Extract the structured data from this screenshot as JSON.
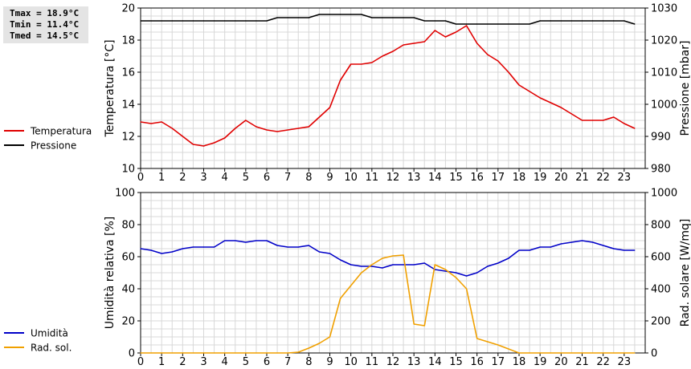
{
  "stats": {
    "tmax": "Tmax = 18.9°C",
    "tmin": "Tmin = 11.4°C",
    "tmed": "Tmed = 14.5°C"
  },
  "colors": {
    "temperature": "#e00000",
    "pressure": "#000000",
    "humidity": "#0000c8",
    "radiation": "#f0a000",
    "grid": "#d8d8d8"
  },
  "chart_data": [
    {
      "type": "line",
      "x_ticks": [
        "0",
        "1",
        "2",
        "3",
        "4",
        "5",
        "6",
        "7",
        "8",
        "9",
        "10",
        "11",
        "12",
        "13",
        "14",
        "15",
        "16",
        "17",
        "18",
        "19",
        "20",
        "21",
        "22",
        "23"
      ],
      "xlim": [
        0,
        24
      ],
      "ylabel": "Temperatura [°C]",
      "ylim": [
        10,
        20
      ],
      "y_ticks": [
        10,
        12,
        14,
        16,
        18,
        20
      ],
      "y2label": "Pressione [mbar]",
      "y2lim": [
        980,
        1030
      ],
      "y2_ticks": [
        980,
        990,
        1000,
        1010,
        1020,
        1030
      ],
      "grid": true,
      "legend_position": "left",
      "series": [
        {
          "name": "Temperatura",
          "axis": "left",
          "color": "#e00000",
          "x": [
            0,
            0.5,
            1,
            1.5,
            2,
            2.5,
            3,
            3.5,
            4,
            4.5,
            5,
            5.5,
            6,
            6.5,
            7,
            7.5,
            8,
            8.5,
            9,
            9.5,
            10,
            10.5,
            11,
            11.5,
            12,
            12.5,
            13,
            13.5,
            14,
            14.5,
            15,
            15.5,
            16,
            16.5,
            17,
            17.5,
            18,
            18.5,
            19,
            19.5,
            20,
            20.5,
            21,
            21.5,
            22,
            22.5,
            23,
            23.5
          ],
          "values": [
            12.9,
            12.8,
            12.9,
            12.5,
            12.0,
            11.5,
            11.4,
            11.6,
            11.9,
            12.5,
            13.0,
            12.6,
            12.4,
            12.3,
            12.4,
            12.5,
            12.6,
            13.2,
            13.8,
            15.5,
            16.5,
            16.5,
            16.6,
            17.0,
            17.3,
            17.7,
            17.8,
            17.9,
            18.6,
            18.2,
            18.5,
            18.9,
            17.8,
            17.1,
            16.7,
            16.0,
            15.2,
            14.8,
            14.4,
            14.1,
            13.8,
            13.4,
            13.0,
            13.0,
            13.0,
            13.2,
            12.8,
            12.5
          ]
        },
        {
          "name": "Pressione",
          "axis": "right",
          "color": "#000000",
          "x": [
            0,
            0.5,
            1,
            1.5,
            2,
            2.5,
            3,
            3.5,
            4,
            4.5,
            5,
            5.5,
            6,
            6.5,
            7,
            7.5,
            8,
            8.5,
            9,
            9.5,
            10,
            10.5,
            11,
            11.5,
            12,
            12.5,
            13,
            13.5,
            14,
            14.5,
            15,
            15.5,
            16,
            16.5,
            17,
            17.5,
            18,
            18.5,
            19,
            19.5,
            20,
            20.5,
            21,
            21.5,
            22,
            22.5,
            23,
            23.5
          ],
          "values": [
            1026,
            1026,
            1026,
            1026,
            1026,
            1026,
            1026,
            1026,
            1026,
            1026,
            1026,
            1026,
            1026,
            1027,
            1027,
            1027,
            1027,
            1028,
            1028,
            1028,
            1028,
            1028,
            1027,
            1027,
            1027,
            1027,
            1027,
            1026,
            1026,
            1026,
            1025,
            1025,
            1025,
            1025,
            1025,
            1025,
            1025,
            1025,
            1026,
            1026,
            1026,
            1026,
            1026,
            1026,
            1026,
            1026,
            1026,
            1025
          ]
        }
      ]
    },
    {
      "type": "line",
      "x_ticks": [
        "0",
        "1",
        "2",
        "3",
        "4",
        "5",
        "6",
        "7",
        "8",
        "9",
        "10",
        "11",
        "12",
        "13",
        "14",
        "15",
        "16",
        "17",
        "18",
        "19",
        "20",
        "21",
        "22",
        "23"
      ],
      "xlim": [
        0,
        24
      ],
      "ylabel": "Umidità relativa [%]",
      "ylim": [
        0,
        100
      ],
      "y_ticks": [
        0,
        20,
        40,
        60,
        80,
        100
      ],
      "y2label": "Rad. solare [W/mq]",
      "y2lim": [
        0,
        1000
      ],
      "y2_ticks": [
        0,
        200,
        400,
        600,
        800,
        1000
      ],
      "grid": true,
      "legend_position": "left",
      "series": [
        {
          "name": "Umidità",
          "axis": "left",
          "color": "#0000c8",
          "x": [
            0,
            0.5,
            1,
            1.5,
            2,
            2.5,
            3,
            3.5,
            4,
            4.5,
            5,
            5.5,
            6,
            6.5,
            7,
            7.5,
            8,
            8.5,
            9,
            9.5,
            10,
            10.5,
            11,
            11.5,
            12,
            12.5,
            13,
            13.5,
            14,
            14.5,
            15,
            15.5,
            16,
            16.5,
            17,
            17.5,
            18,
            18.5,
            19,
            19.5,
            20,
            20.5,
            21,
            21.5,
            22,
            22.5,
            23,
            23.5
          ],
          "values": [
            65,
            64,
            62,
            63,
            65,
            66,
            66,
            66,
            70,
            70,
            69,
            70,
            70,
            67,
            66,
            66,
            67,
            63,
            62,
            58,
            55,
            54,
            54,
            53,
            55,
            55,
            55,
            56,
            52,
            51,
            50,
            48,
            50,
            54,
            56,
            59,
            64,
            64,
            66,
            66,
            68,
            69,
            70,
            69,
            67,
            65,
            64,
            64
          ]
        },
        {
          "name": "Rad. sol.",
          "axis": "right",
          "color": "#f0a000",
          "x": [
            0,
            0.5,
            1,
            1.5,
            2,
            2.5,
            3,
            3.5,
            4,
            4.5,
            5,
            5.5,
            6,
            6.5,
            7,
            7.5,
            8,
            8.5,
            9,
            9.5,
            10,
            10.5,
            11,
            11.5,
            12,
            12.5,
            13,
            13.5,
            14,
            14.5,
            15,
            15.5,
            16,
            16.5,
            17,
            17.5,
            18,
            18.5,
            19,
            19.5,
            20,
            20.5,
            21,
            21.5,
            22,
            22.5,
            23,
            23.5
          ],
          "values": [
            0,
            0,
            0,
            0,
            0,
            0,
            0,
            0,
            0,
            0,
            0,
            0,
            0,
            0,
            0,
            5,
            30,
            60,
            100,
            340,
            420,
            500,
            550,
            590,
            605,
            610,
            180,
            170,
            550,
            520,
            470,
            400,
            90,
            70,
            50,
            25,
            0,
            0,
            0,
            0,
            0,
            0,
            0,
            0,
            0,
            0,
            0,
            0
          ]
        }
      ]
    }
  ]
}
